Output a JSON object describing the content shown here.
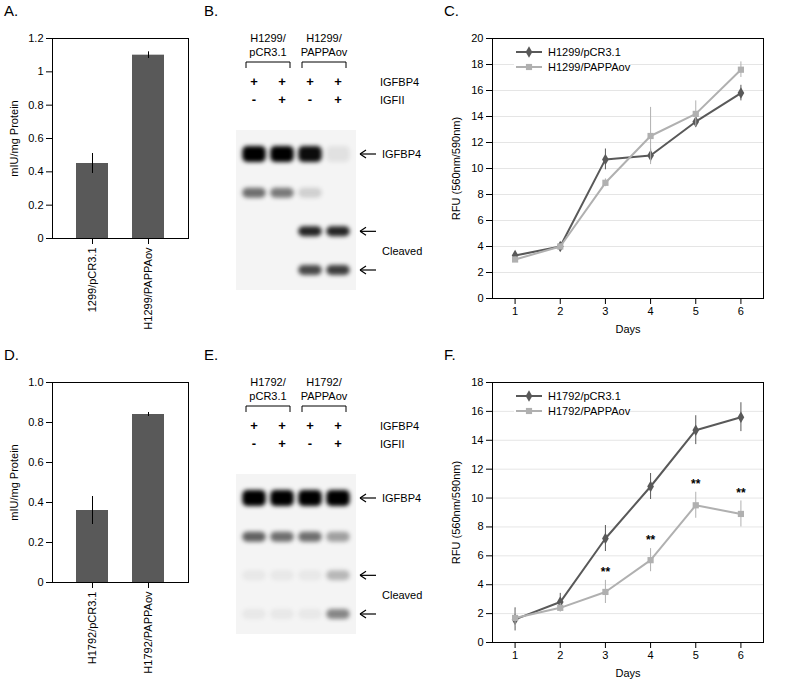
{
  "chart_data": [
    {
      "type": "bar",
      "title": "A.",
      "categories": [
        "1299/pCR3.1",
        "H1299/PAPPAov"
      ],
      "values": [
        0.45,
        1.1
      ],
      "errors": [
        0.06,
        0.02
      ],
      "color": "#595959",
      "ylabel": "mIU/mg Protein",
      "ylim": [
        0,
        1.2
      ],
      "yticks": [
        0,
        0.2,
        0.4,
        0.6,
        0.8,
        1,
        1.2
      ]
    },
    {
      "type": "blot",
      "title": "B.",
      "groups": [
        "H1299/pCR3.1",
        "H1299/PAPPAov"
      ],
      "rows": [
        {
          "label": "IGFBP4",
          "values": [
            "+",
            "+",
            "+",
            "+"
          ]
        },
        {
          "label": "IGFII",
          "values": [
            "-",
            "+",
            "-",
            "+"
          ]
        }
      ],
      "bands": [
        {
          "label": "IGFBP4",
          "intensity": [
            1,
            1,
            0.95,
            0.08
          ]
        },
        {
          "label": null,
          "intensity": [
            0.55,
            0.5,
            0.15,
            0
          ]
        },
        {
          "label": "Cleaved",
          "intensity": [
            0,
            0,
            0.85,
            0.85
          ]
        },
        {
          "label": "Cleaved",
          "intensity": [
            0,
            0,
            0.7,
            0.75
          ]
        }
      ]
    },
    {
      "type": "line",
      "title": "C.",
      "xlabel": "Days",
      "ylabel": "RFU (560nm/590nm)",
      "x": [
        1,
        2,
        3,
        4,
        5,
        6
      ],
      "xlim": [
        0.5,
        6.5
      ],
      "xticks": [
        1,
        2,
        3,
        4,
        5,
        6
      ],
      "ylim": [
        0,
        20
      ],
      "yticks": [
        0,
        2,
        4,
        6,
        8,
        10,
        12,
        14,
        16,
        18,
        20
      ],
      "grid": true,
      "legend": "top-left",
      "series": [
        {
          "name": "H1299/pCR3.1",
          "color": "#595959",
          "marker": "diamond",
          "values": [
            3.3,
            4.0,
            10.7,
            11.0,
            13.6,
            15.8
          ],
          "errors": [
            0.3,
            0.2,
            0.8,
            0.5,
            0.4,
            0.6
          ]
        },
        {
          "name": "H1299/PAPPAov",
          "color": "#b0b0b0",
          "marker": "square",
          "values": [
            3.0,
            4.0,
            8.9,
            12.5,
            14.2,
            17.6
          ],
          "errors": [
            0.2,
            0.2,
            0.3,
            2.2,
            1.0,
            0.6
          ]
        }
      ]
    },
    {
      "type": "bar",
      "title": "D.",
      "categories": [
        "H1792/pCR3.1",
        "H1792/PAPPAov"
      ],
      "values": [
        0.36,
        0.84
      ],
      "errors": [
        0.07,
        0.01
      ],
      "color": "#595959",
      "ylabel": "mIU/mg Protein",
      "ylim": [
        0,
        1
      ],
      "yticks": [
        0,
        0.2,
        0.4,
        0.6,
        0.8,
        {
          "value": 1,
          "label": "1.0"
        }
      ]
    },
    {
      "type": "blot",
      "title": "E.",
      "groups": [
        "H1792/pCR3.1",
        "H1792/PAPPAov"
      ],
      "rows": [
        {
          "label": "IGFBP4",
          "values": [
            "+",
            "+",
            "+",
            "+"
          ]
        },
        {
          "label": "IGFII",
          "values": [
            "-",
            "+",
            "-",
            "+"
          ]
        }
      ],
      "bands": [
        {
          "label": "IGFBP4",
          "intensity": [
            1,
            1,
            1,
            1
          ]
        },
        {
          "label": null,
          "intensity": [
            0.6,
            0.55,
            0.55,
            0.35
          ]
        },
        {
          "label": "Cleaved",
          "intensity": [
            0.05,
            0.05,
            0.05,
            0.25
          ]
        },
        {
          "label": "Cleaved",
          "intensity": [
            0.05,
            0.05,
            0.05,
            0.45
          ]
        }
      ]
    },
    {
      "type": "line",
      "title": "F.",
      "xlabel": "Days",
      "ylabel": "RFU (560nm/590nm)",
      "x": [
        1,
        2,
        3,
        4,
        5,
        6
      ],
      "xlim": [
        0.5,
        6.5
      ],
      "xticks": [
        1,
        2,
        3,
        4,
        5,
        6
      ],
      "ylim": [
        0,
        18
      ],
      "yticks": [
        0,
        2,
        4,
        6,
        8,
        10,
        12,
        14,
        16,
        18
      ],
      "grid": true,
      "legend": "top-left",
      "series": [
        {
          "name": "H1792/pCR3.1",
          "color": "#595959",
          "marker": "diamond",
          "values": [
            1.6,
            2.8,
            7.2,
            10.8,
            14.7,
            15.6
          ],
          "errors": [
            0.8,
            0.6,
            0.9,
            0.9,
            1.0,
            1.0
          ]
        },
        {
          "name": "H1792/PAPPAov",
          "color": "#b0b0b0",
          "marker": "square",
          "values": [
            1.7,
            2.4,
            3.5,
            5.7,
            9.5,
            8.9
          ],
          "errors": [
            0.6,
            0.3,
            0.8,
            0.8,
            0.9,
            0.9
          ],
          "significance": [
            null,
            null,
            "**",
            "**",
            "**",
            "**"
          ]
        }
      ]
    }
  ]
}
